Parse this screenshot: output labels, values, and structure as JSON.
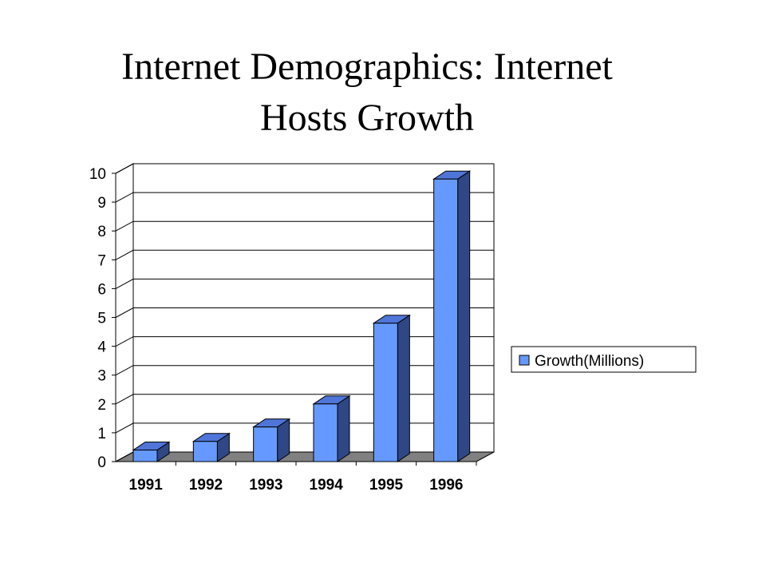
{
  "title": {
    "line1": "Internet Demographics: Internet",
    "line2": "Hosts Growth"
  },
  "colors": {
    "bar_front": "#6699FF",
    "bar_top": "#4F75D8",
    "bar_side": "#2F4785",
    "floor": "#808080",
    "grid": "#000000",
    "background": "#FFFFFF"
  },
  "chart_data": {
    "type": "bar",
    "three_d": true,
    "categories": [
      "1991",
      "1992",
      "1993",
      "1994",
      "1995",
      "1996"
    ],
    "series": [
      {
        "name": "Growth(Millions)",
        "values": [
          0.4,
          0.7,
          1.2,
          2.0,
          4.8,
          9.8
        ]
      }
    ],
    "ylim": [
      0,
      10
    ],
    "yticks": [
      0,
      1,
      2,
      3,
      4,
      5,
      6,
      7,
      8,
      9,
      10
    ],
    "grid": true,
    "legend": "right",
    "xlabel": "",
    "ylabel": ""
  }
}
